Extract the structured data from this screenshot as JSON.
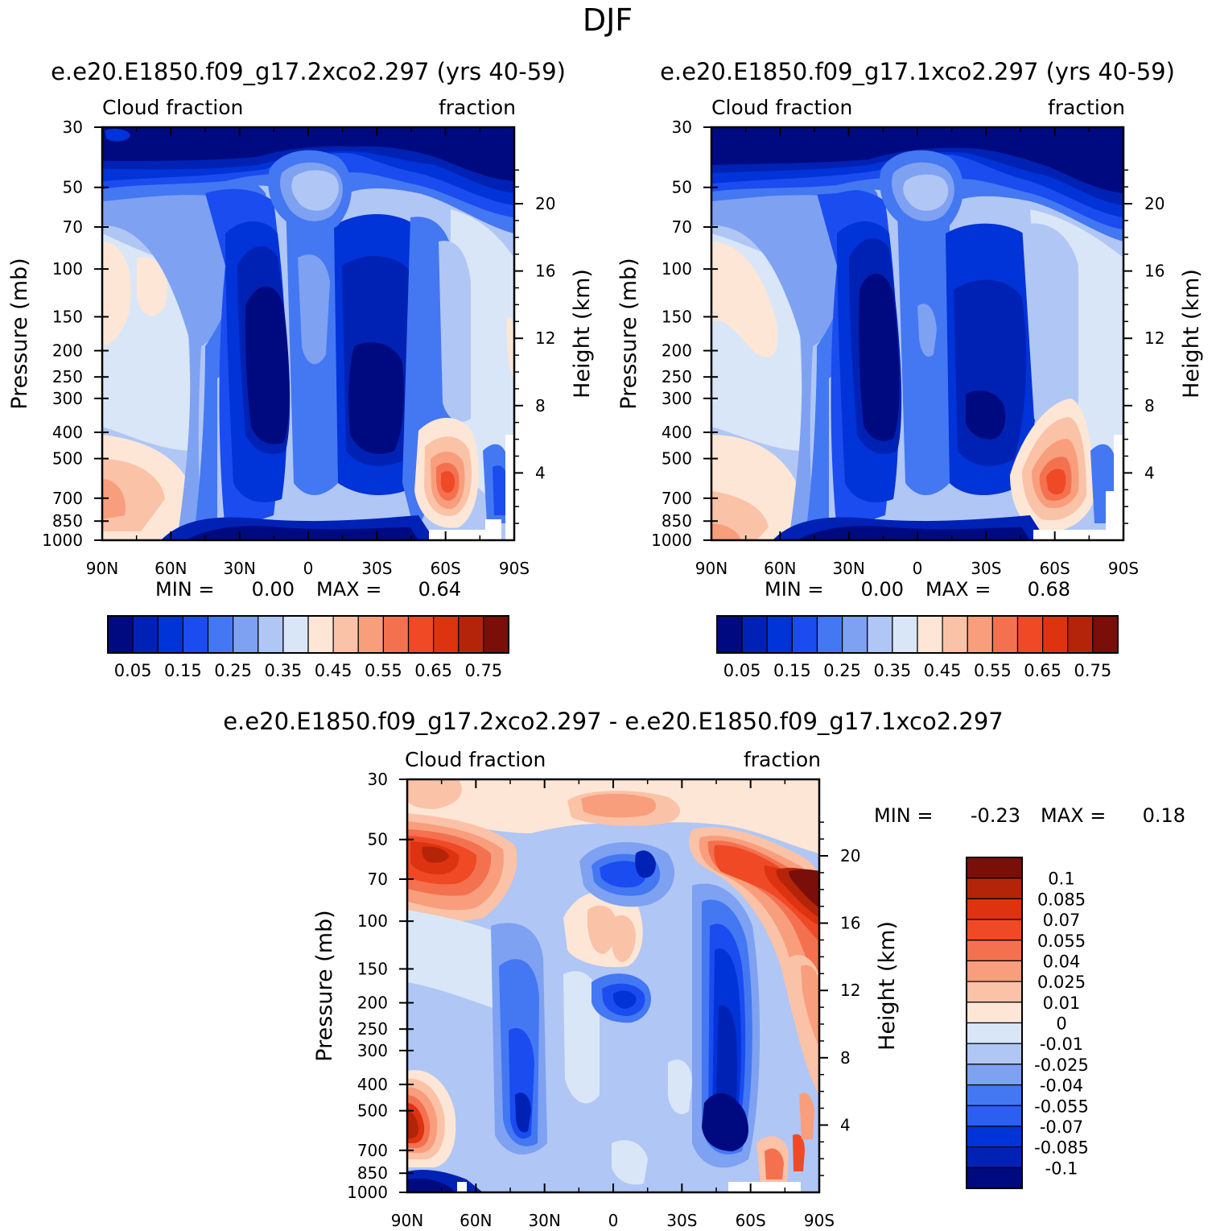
{
  "season_title": "DJF",
  "colors": {
    "abs_levels": [
      "#000a80",
      "#0022b4",
      "#0033d8",
      "#1a4cf0",
      "#4477f2",
      "#7ea1f2",
      "#b0c6f5",
      "#d9e6f7",
      "#fde6d6",
      "#fac2a7",
      "#f89e7c",
      "#f47150",
      "#ef4a25",
      "#dd3310",
      "#b42408",
      "#7a0e08"
    ],
    "diff_levels": [
      "#7a0e08",
      "#b42408",
      "#dd3310",
      "#ef4a25",
      "#f47150",
      "#f89e7c",
      "#fac2a7",
      "#fde6d6",
      "#d9e6f7",
      "#b0c6f5",
      "#7ea1f2",
      "#4477f2",
      "#2a5ff0",
      "#0033d8",
      "#0022b4",
      "#000a80"
    ]
  },
  "chart_data": [
    {
      "id": "left",
      "type": "heatmap",
      "title": "e.e20.E1850.f09_g17.2xco2.297 (yrs 40-59)",
      "left_label": "Cloud fraction",
      "right_label": "fraction",
      "xlabel": "",
      "ylabel": "Pressure (mb)",
      "ylabel_right": "Height (km)",
      "x_ticks": [
        "90N",
        "60N",
        "30N",
        "0",
        "30S",
        "60S",
        "90S"
      ],
      "y_ticks": [
        "30",
        "50",
        "70",
        "100",
        "150",
        "200",
        "250",
        "300",
        "400",
        "500",
        "700",
        "850",
        "1000"
      ],
      "height_ticks": [
        "20",
        "16",
        "12",
        "8",
        "4"
      ],
      "min_label": "MIN =",
      "min_value": "0.00",
      "max_label": "MAX =",
      "max_value": "0.64",
      "colorbar_labels": [
        "0.05",
        "0.15",
        "0.25",
        "0.35",
        "0.45",
        "0.55",
        "0.65",
        "0.75"
      ],
      "field_note": "zonal-mean cloud fraction, latitude vs pressure, range 0 to 0.8"
    },
    {
      "id": "right",
      "type": "heatmap",
      "title": "e.e20.E1850.f09_g17.1xco2.297 (yrs 40-59)",
      "left_label": "Cloud fraction",
      "right_label": "fraction",
      "xlabel": "",
      "ylabel": "Pressure (mb)",
      "ylabel_right": "Height (km)",
      "x_ticks": [
        "90N",
        "60N",
        "30N",
        "0",
        "30S",
        "60S",
        "90S"
      ],
      "y_ticks": [
        "30",
        "50",
        "70",
        "100",
        "150",
        "200",
        "250",
        "300",
        "400",
        "500",
        "700",
        "850",
        "1000"
      ],
      "height_ticks": [
        "20",
        "16",
        "12",
        "8",
        "4"
      ],
      "min_label": "MIN =",
      "min_value": "0.00",
      "max_label": "MAX =",
      "max_value": "0.68",
      "colorbar_labels": [
        "0.05",
        "0.15",
        "0.25",
        "0.35",
        "0.45",
        "0.55",
        "0.65",
        "0.75"
      ],
      "field_note": "zonal-mean cloud fraction, latitude vs pressure, range 0 to 0.8"
    },
    {
      "id": "diff",
      "type": "heatmap",
      "title": "e.e20.E1850.f09_g17.2xco2.297 - e.e20.E1850.f09_g17.1xco2.297",
      "left_label": "Cloud fraction",
      "right_label": "fraction",
      "xlabel": "",
      "ylabel": "Pressure (mb)",
      "ylabel_right": "Height (km)",
      "x_ticks": [
        "90N",
        "60N",
        "30N",
        "0",
        "30S",
        "60S",
        "90S"
      ],
      "y_ticks": [
        "30",
        "50",
        "70",
        "100",
        "150",
        "200",
        "250",
        "300",
        "400",
        "500",
        "700",
        "850",
        "1000"
      ],
      "height_ticks": [
        "20",
        "16",
        "12",
        "8",
        "4"
      ],
      "min_label": "MIN =",
      "min_value": "-0.23",
      "max_label": "MAX =",
      "max_value": "0.18",
      "colorbar_labels": [
        "0.1",
        "0.085",
        "0.07",
        "0.055",
        "0.04",
        "0.025",
        "0.01",
        "0",
        "-0.01",
        "-0.025",
        "-0.04",
        "-0.055",
        "-0.07",
        "-0.085",
        "-0.1"
      ],
      "field_note": "difference in cloud fraction, range -0.115 to 0.115"
    }
  ]
}
